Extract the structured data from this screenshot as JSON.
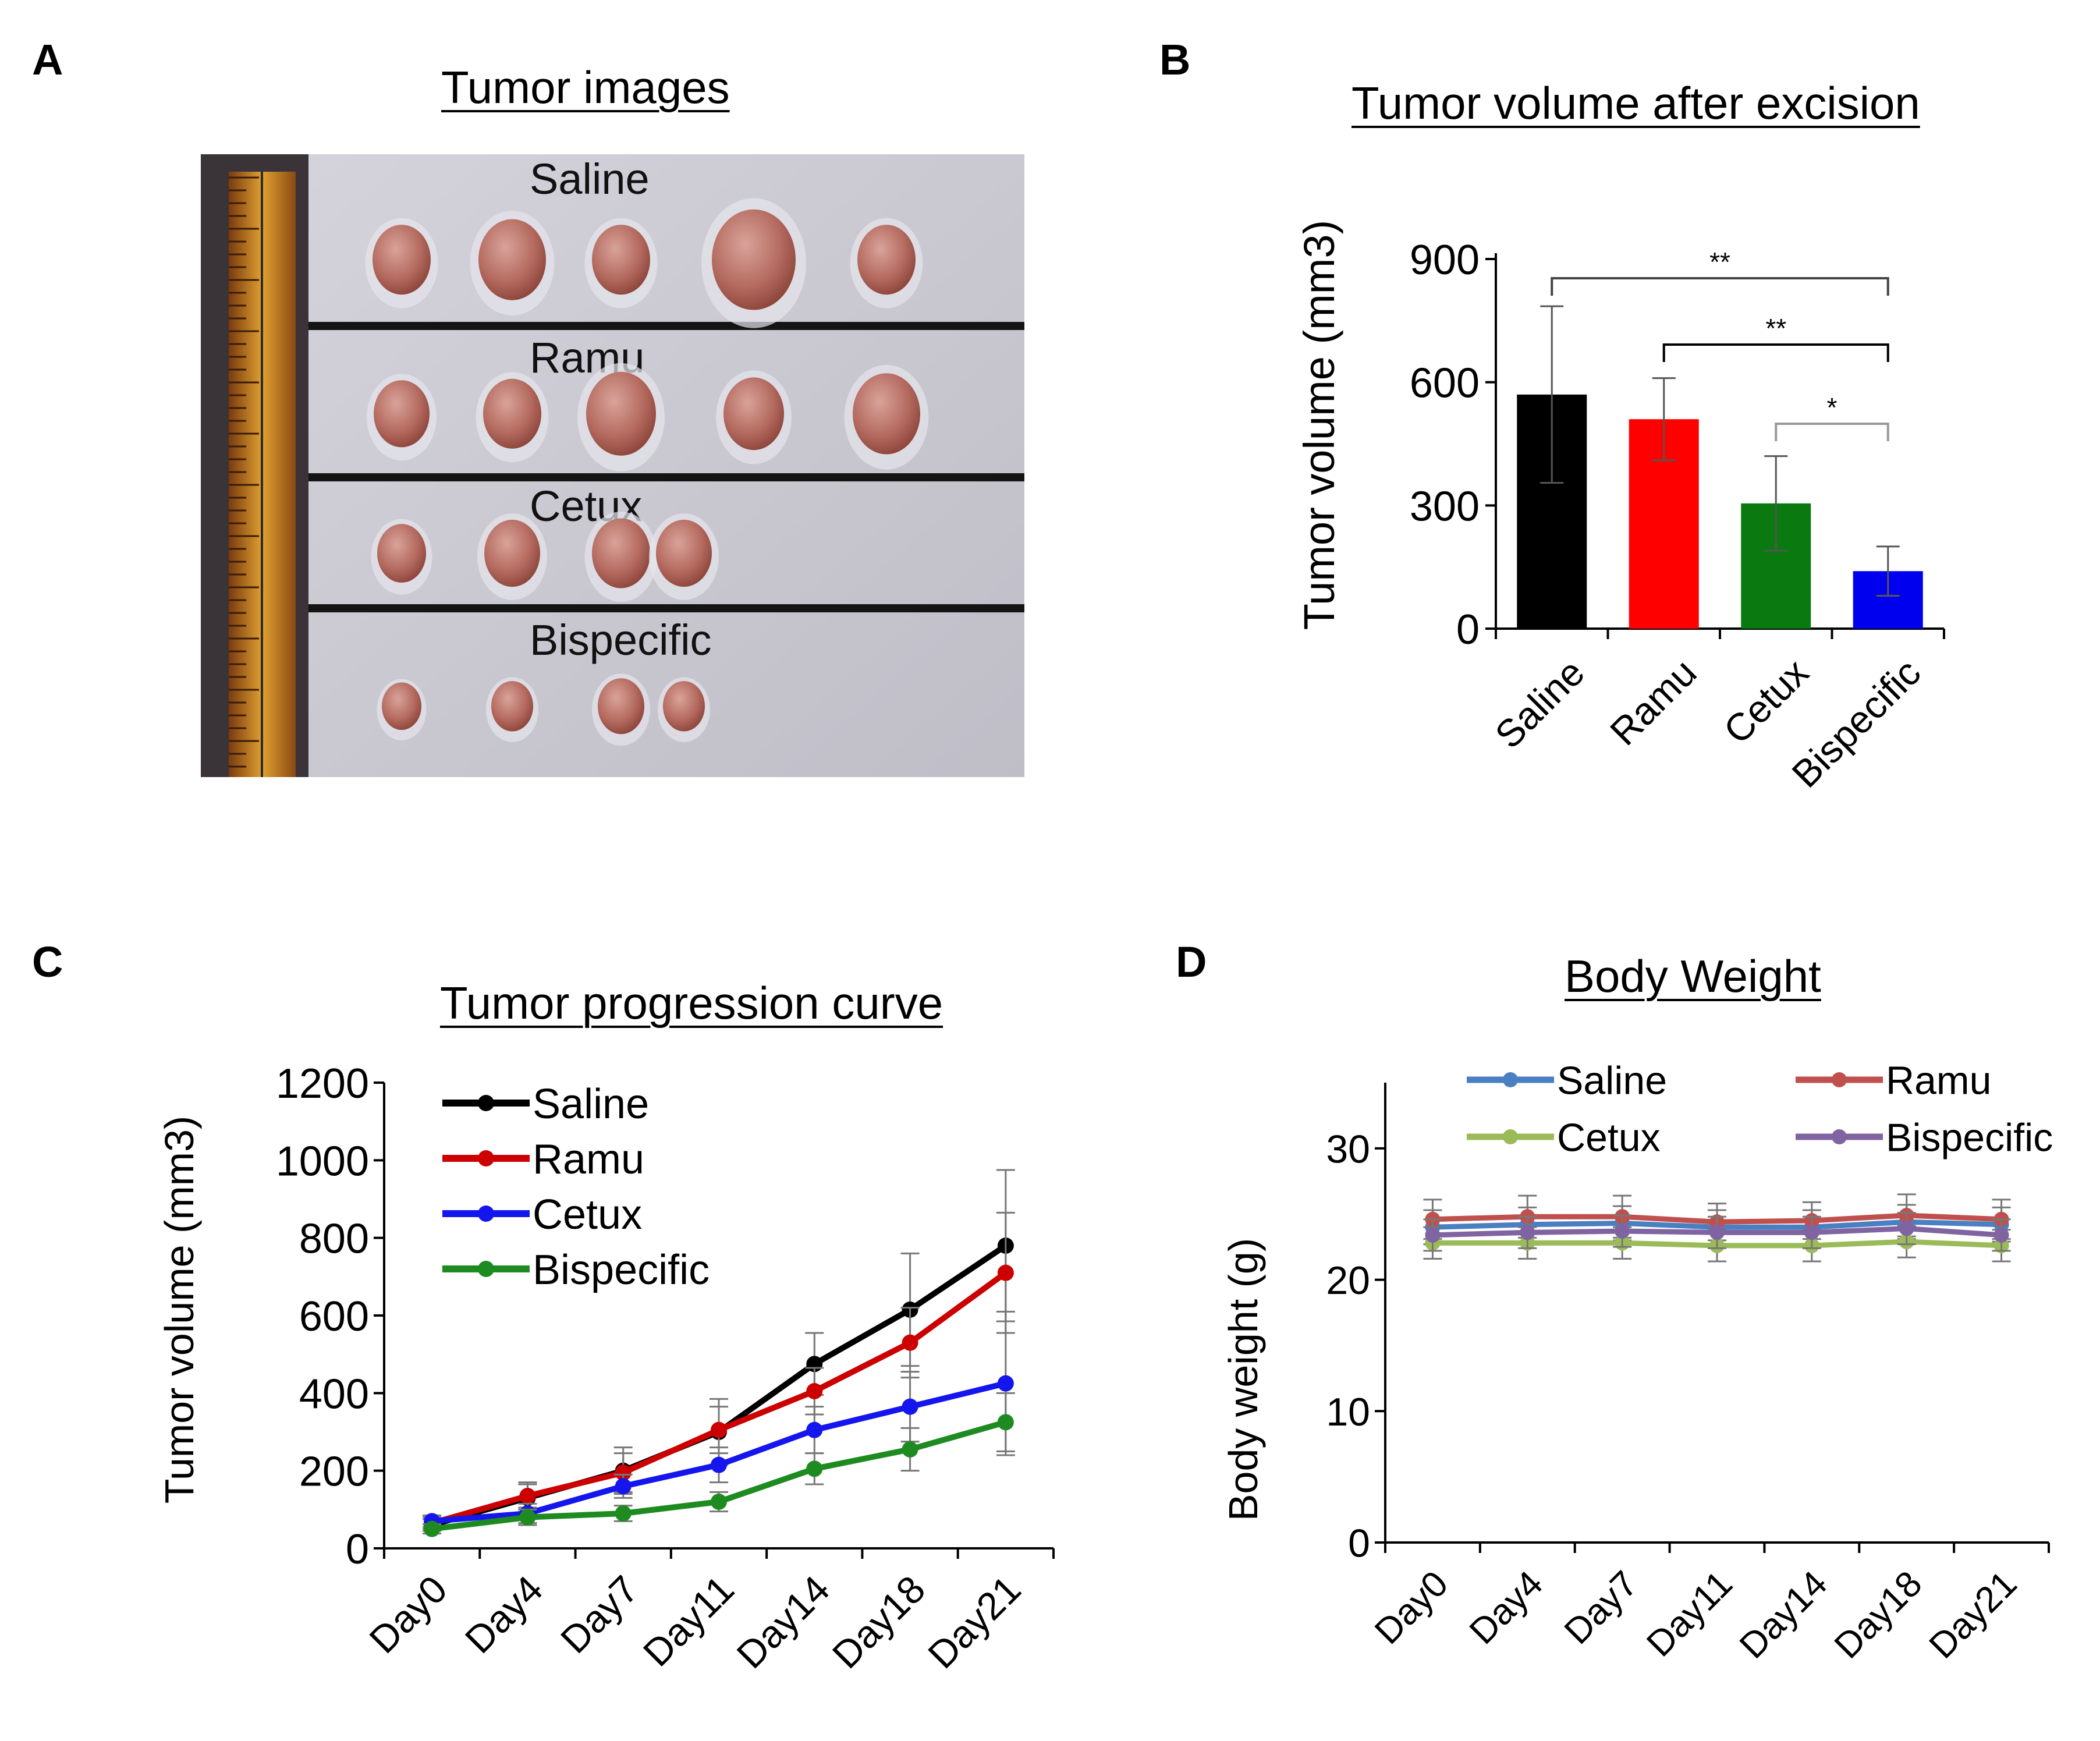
{
  "panels": {
    "A": {
      "letter": "A",
      "title": "Tumor images",
      "groups": [
        "Saline",
        "Ramu",
        "Cetux",
        "Bispecific"
      ],
      "tumor_counts": [
        5,
        5,
        4,
        4
      ]
    },
    "B": {
      "letter": "B",
      "title": "Tumor volume after excision"
    },
    "C": {
      "letter": "C",
      "title": "Tumor progression curve"
    },
    "D": {
      "letter": "D",
      "title": "Body Weight"
    }
  },
  "colors": {
    "black": "#000000",
    "red": "#ff0000",
    "green": "#0a7a10",
    "blue": "#0000ee",
    "c_black": "#000000",
    "c_red": "#cc0000",
    "c_blue": "#1515ee",
    "c_green": "#1e8b20",
    "d_blue": "#4a7fc1",
    "d_red": "#c0504d",
    "d_green": "#9bbb59",
    "d_purple": "#8064a2"
  },
  "chart_data": [
    {
      "id": "B",
      "type": "bar",
      "ylabel": "Tumor volume (mm3)",
      "ylim": [
        0,
        900
      ],
      "yticks": [
        0,
        300,
        600,
        900
      ],
      "categories": [
        "Saline",
        "Ramu",
        "Cetux",
        "Bispecific"
      ],
      "values": [
        570,
        510,
        305,
        140
      ],
      "errors": [
        215,
        100,
        115,
        60
      ],
      "bar_colors": [
        "#000000",
        "#ff0000",
        "#0a7a10",
        "#0000ee"
      ],
      "significance": [
        {
          "from": "Saline",
          "to": "Bispecific",
          "label": "**"
        },
        {
          "from": "Ramu",
          "to": "Bispecific",
          "label": "**"
        },
        {
          "from": "Cetux",
          "to": "Bispecific",
          "label": "*"
        }
      ]
    },
    {
      "id": "C",
      "type": "line",
      "ylabel": "Tumor volume (mm3)",
      "ylim": [
        0,
        1200
      ],
      "yticks": [
        0,
        200,
        400,
        600,
        800,
        1000,
        1200
      ],
      "categories": [
        "Day0",
        "Day4",
        "Day7",
        "Day11",
        "Day14",
        "Day18",
        "Day21"
      ],
      "series": [
        {
          "name": "Saline",
          "color": "#000000",
          "values": [
            60,
            130,
            200,
            300,
            475,
            615,
            780
          ],
          "errors": [
            15,
            40,
            60,
            85,
            80,
            145,
            195
          ]
        },
        {
          "name": "Ramu",
          "color": "#cc0000",
          "values": [
            65,
            135,
            195,
            305,
            405,
            530,
            710
          ],
          "errors": [
            15,
            30,
            50,
            60,
            60,
            90,
            155
          ]
        },
        {
          "name": "Cetux",
          "color": "#1515ee",
          "values": [
            70,
            90,
            160,
            215,
            305,
            365,
            425
          ],
          "errors": [
            15,
            25,
            30,
            45,
            60,
            90,
            185
          ]
        },
        {
          "name": "Bispecific",
          "color": "#1e8b20",
          "values": [
            50,
            80,
            90,
            120,
            205,
            255,
            325
          ],
          "errors": [
            12,
            20,
            20,
            25,
            40,
            55,
            75
          ]
        }
      ]
    },
    {
      "id": "D",
      "type": "line",
      "ylabel": "Body weight (g)",
      "ylim": [
        0,
        35
      ],
      "yticks": [
        0,
        10,
        20,
        30
      ],
      "categories": [
        "Day0",
        "Day4",
        "Day7",
        "Day11",
        "Day14",
        "Day18",
        "Day21"
      ],
      "series": [
        {
          "name": "Saline",
          "color": "#4a7fc1",
          "values": [
            24.0,
            24.2,
            24.3,
            24.0,
            24.0,
            24.4,
            24.2
          ],
          "errors": [
            1.3,
            1.3,
            1.3,
            1.3,
            1.3,
            1.3,
            1.3
          ]
        },
        {
          "name": "Ramu",
          "color": "#c0504d",
          "values": [
            24.6,
            24.8,
            24.8,
            24.4,
            24.5,
            24.9,
            24.6
          ],
          "errors": [
            1.5,
            1.6,
            1.6,
            1.4,
            1.4,
            1.6,
            1.5
          ]
        },
        {
          "name": "Cetux",
          "color": "#9bbb59",
          "values": [
            22.8,
            22.8,
            22.8,
            22.6,
            22.6,
            22.9,
            22.6
          ],
          "errors": [
            1.2,
            1.2,
            1.2,
            1.2,
            1.2,
            1.2,
            1.2
          ]
        },
        {
          "name": "Bispecific",
          "color": "#8064a2",
          "values": [
            23.4,
            23.6,
            23.7,
            23.6,
            23.6,
            23.9,
            23.4
          ],
          "errors": [
            1.2,
            1.2,
            1.2,
            1.2,
            1.2,
            1.2,
            1.2
          ]
        }
      ]
    }
  ]
}
